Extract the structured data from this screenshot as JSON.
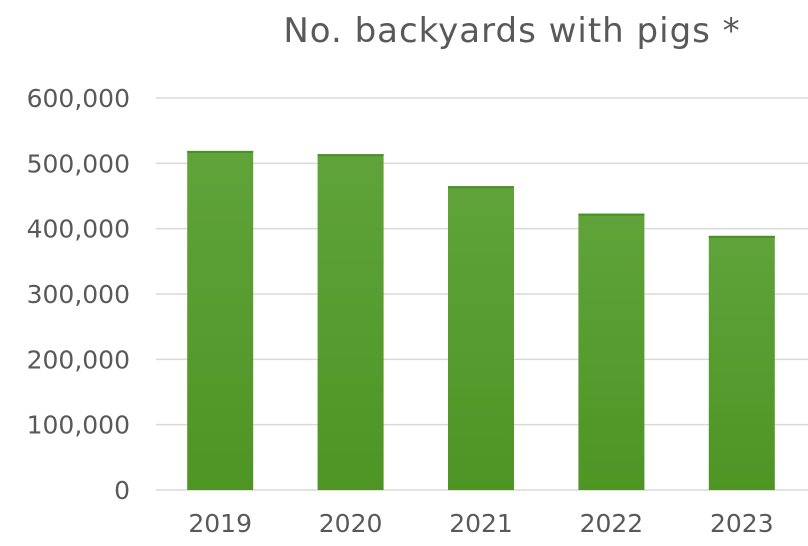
{
  "chart_data": {
    "type": "bar",
    "title": "No. backyards with pigs *",
    "xlabel": "",
    "ylabel": "",
    "categories": [
      "2019",
      "2020",
      "2021",
      "2022",
      "2023"
    ],
    "values": [
      519000,
      514000,
      465000,
      423000,
      389000
    ],
    "ylim": [
      0,
      600000
    ],
    "yticks": [
      0,
      100000,
      200000,
      300000,
      400000,
      500000,
      600000
    ],
    "ytick_labels": [
      "0",
      "100,000",
      "200,000",
      "300,000",
      "400,000",
      "500,000",
      "600,000"
    ],
    "grid": true,
    "legend": "none",
    "bar_color": "#5fa33a",
    "bar_color_dark": "#4e9524"
  }
}
